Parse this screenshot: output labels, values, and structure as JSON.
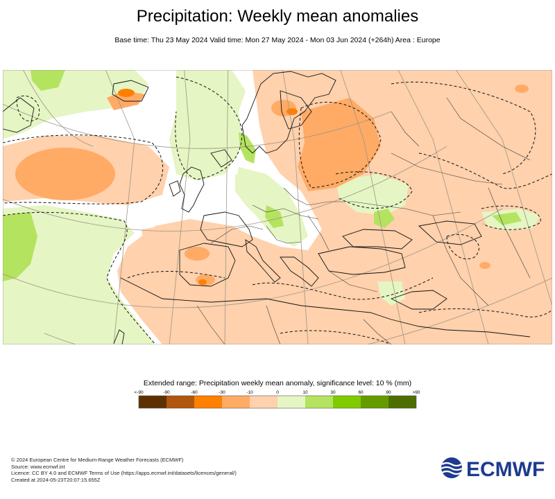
{
  "title": "Precipitation: Weekly mean anomalies",
  "subtitle": "Base time: Thu 23 May 2024 Valid time: Mon 27 May 2024 - Mon 03 Jun 2024 (+264h) Area : Europe",
  "legend": {
    "title": "Extended range: Precipitation weekly mean anomaly, significance level: 10 % (mm)",
    "ticks": [
      "<-90",
      "-90",
      "-60",
      "-30",
      "-10",
      "0",
      "10",
      "30",
      "60",
      "90",
      ">90"
    ],
    "colors": [
      "#5e3000",
      "#b0560e",
      "#ff8000",
      "#ffab66",
      "#ffd1ad",
      "#e5f5c3",
      "#b4e35f",
      "#7fcb00",
      "#669b00",
      "#4d6e00"
    ]
  },
  "map_colors": {
    "ocean": "#ffffff",
    "coast": "#111111",
    "graticule": "#9c9585"
  },
  "footer": [
    "© 2024 European Centre for Medium-Range Weather Forecasts (ECMWF)",
    "Source: www.ecmwf.int",
    "Licence: CC BY 4.0 and ECMWF Terms of Use (https://apps.ecmwf.int/datasets/licences/general/)",
    "Created at 2024-05-23T20:07:15.655Z"
  ],
  "logo_text": "ECMWF",
  "logo_color": "#1d3b8f"
}
